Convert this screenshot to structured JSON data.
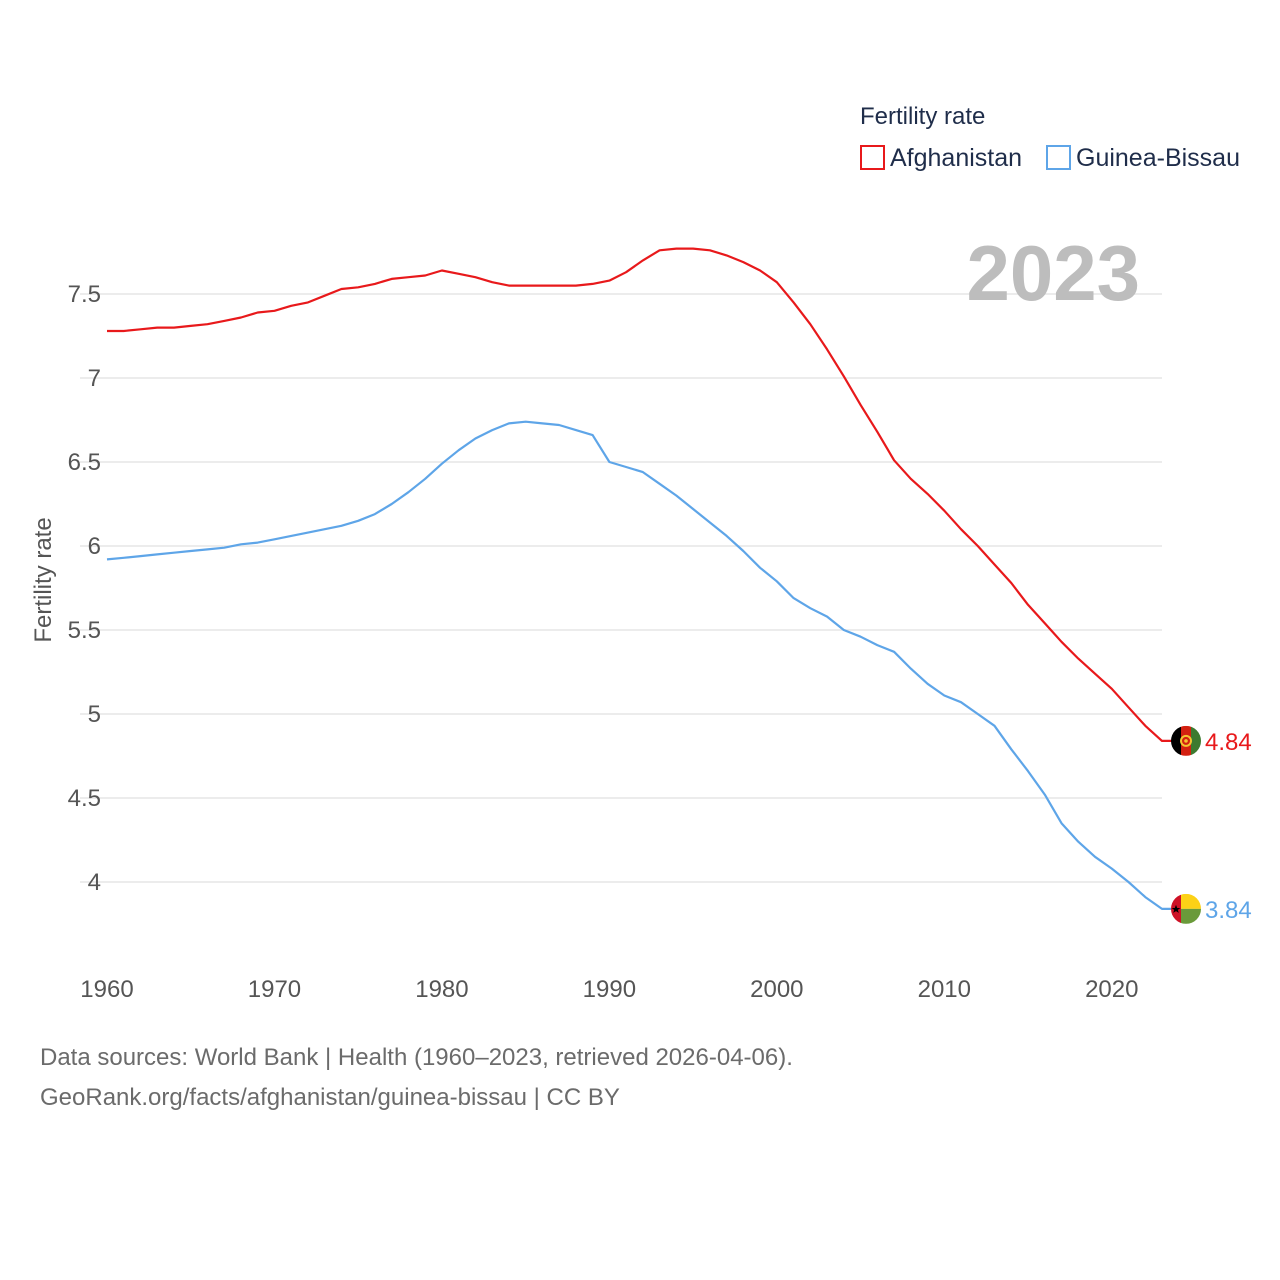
{
  "chart_data": {
    "type": "line",
    "title": "Fertility rate",
    "ylabel": "Fertility rate",
    "xlabel": "",
    "year_label": "2023",
    "xlim": [
      1960,
      2023
    ],
    "ylim": [
      3.75,
      7.8
    ],
    "x_ticks": [
      1960,
      1970,
      1980,
      1990,
      2000,
      2010,
      2020
    ],
    "y_ticks": [
      4,
      4.5,
      5,
      5.5,
      6,
      6.5,
      7,
      7.5
    ],
    "y_tick_labels": [
      "4",
      "4.5",
      "5",
      "5.5",
      "6",
      "6.5",
      "7",
      "7.5"
    ],
    "x": [
      1960,
      1961,
      1962,
      1963,
      1964,
      1965,
      1966,
      1967,
      1968,
      1969,
      1970,
      1971,
      1972,
      1973,
      1974,
      1975,
      1976,
      1977,
      1978,
      1979,
      1980,
      1981,
      1982,
      1983,
      1984,
      1985,
      1986,
      1987,
      1988,
      1989,
      1990,
      1991,
      1992,
      1993,
      1994,
      1995,
      1996,
      1997,
      1998,
      1999,
      2000,
      2001,
      2002,
      2003,
      2004,
      2005,
      2006,
      2007,
      2008,
      2009,
      2010,
      2011,
      2012,
      2013,
      2014,
      2015,
      2016,
      2017,
      2018,
      2019,
      2020,
      2021,
      2022,
      2023
    ],
    "series": [
      {
        "name": "Afghanistan",
        "color": "#e8191b",
        "end_label": "4.84",
        "values": [
          7.28,
          7.28,
          7.29,
          7.3,
          7.3,
          7.31,
          7.32,
          7.34,
          7.36,
          7.39,
          7.4,
          7.43,
          7.45,
          7.49,
          7.53,
          7.54,
          7.56,
          7.59,
          7.6,
          7.61,
          7.64,
          7.62,
          7.6,
          7.57,
          7.55,
          7.55,
          7.55,
          7.55,
          7.55,
          7.56,
          7.58,
          7.63,
          7.7,
          7.76,
          7.77,
          7.77,
          7.76,
          7.73,
          7.69,
          7.64,
          7.57,
          7.45,
          7.32,
          7.17,
          7.01,
          6.84,
          6.68,
          6.51,
          6.4,
          6.31,
          6.21,
          6.1,
          6.0,
          5.89,
          5.78,
          5.65,
          5.54,
          5.43,
          5.33,
          5.24,
          5.15,
          5.04,
          4.93,
          4.84
        ]
      },
      {
        "name": "Guinea-Bissau",
        "color": "#5ea5e8",
        "end_label": "3.84",
        "values": [
          5.92,
          5.93,
          5.94,
          5.95,
          5.96,
          5.97,
          5.98,
          5.99,
          6.01,
          6.02,
          6.04,
          6.06,
          6.08,
          6.1,
          6.12,
          6.15,
          6.19,
          6.25,
          6.32,
          6.4,
          6.49,
          6.57,
          6.64,
          6.69,
          6.73,
          6.74,
          6.73,
          6.72,
          6.69,
          6.66,
          6.5,
          6.47,
          6.44,
          6.37,
          6.3,
          6.22,
          6.14,
          6.06,
          5.97,
          5.87,
          5.79,
          5.69,
          5.63,
          5.58,
          5.5,
          5.46,
          5.41,
          5.37,
          5.27,
          5.18,
          5.11,
          5.07,
          5.0,
          4.93,
          4.79,
          4.66,
          4.52,
          4.35,
          4.24,
          4.15,
          4.08,
          4.0,
          3.91,
          3.84
        ]
      }
    ],
    "legend_title": "Fertility rate",
    "legend_position": "top-right",
    "grid": true
  },
  "flags": {
    "afghanistan": {
      "name": "Afghanistan flag",
      "colors": [
        "#000000",
        "#d32011",
        "#3d7a30"
      ],
      "emblem": "#f4c430"
    },
    "guinea_bissau": {
      "name": "Guinea-Bissau flag",
      "colors": [
        "#ce1126",
        "#fcd116",
        "#6a9a3a"
      ],
      "star": "#000000"
    }
  },
  "footer": {
    "sources": "Data sources: World Bank | Health (1960–2023, retrieved 2026-04-06).",
    "attribution": "GeoRank.org/facts/afghanistan/guinea-bissau | CC BY"
  }
}
